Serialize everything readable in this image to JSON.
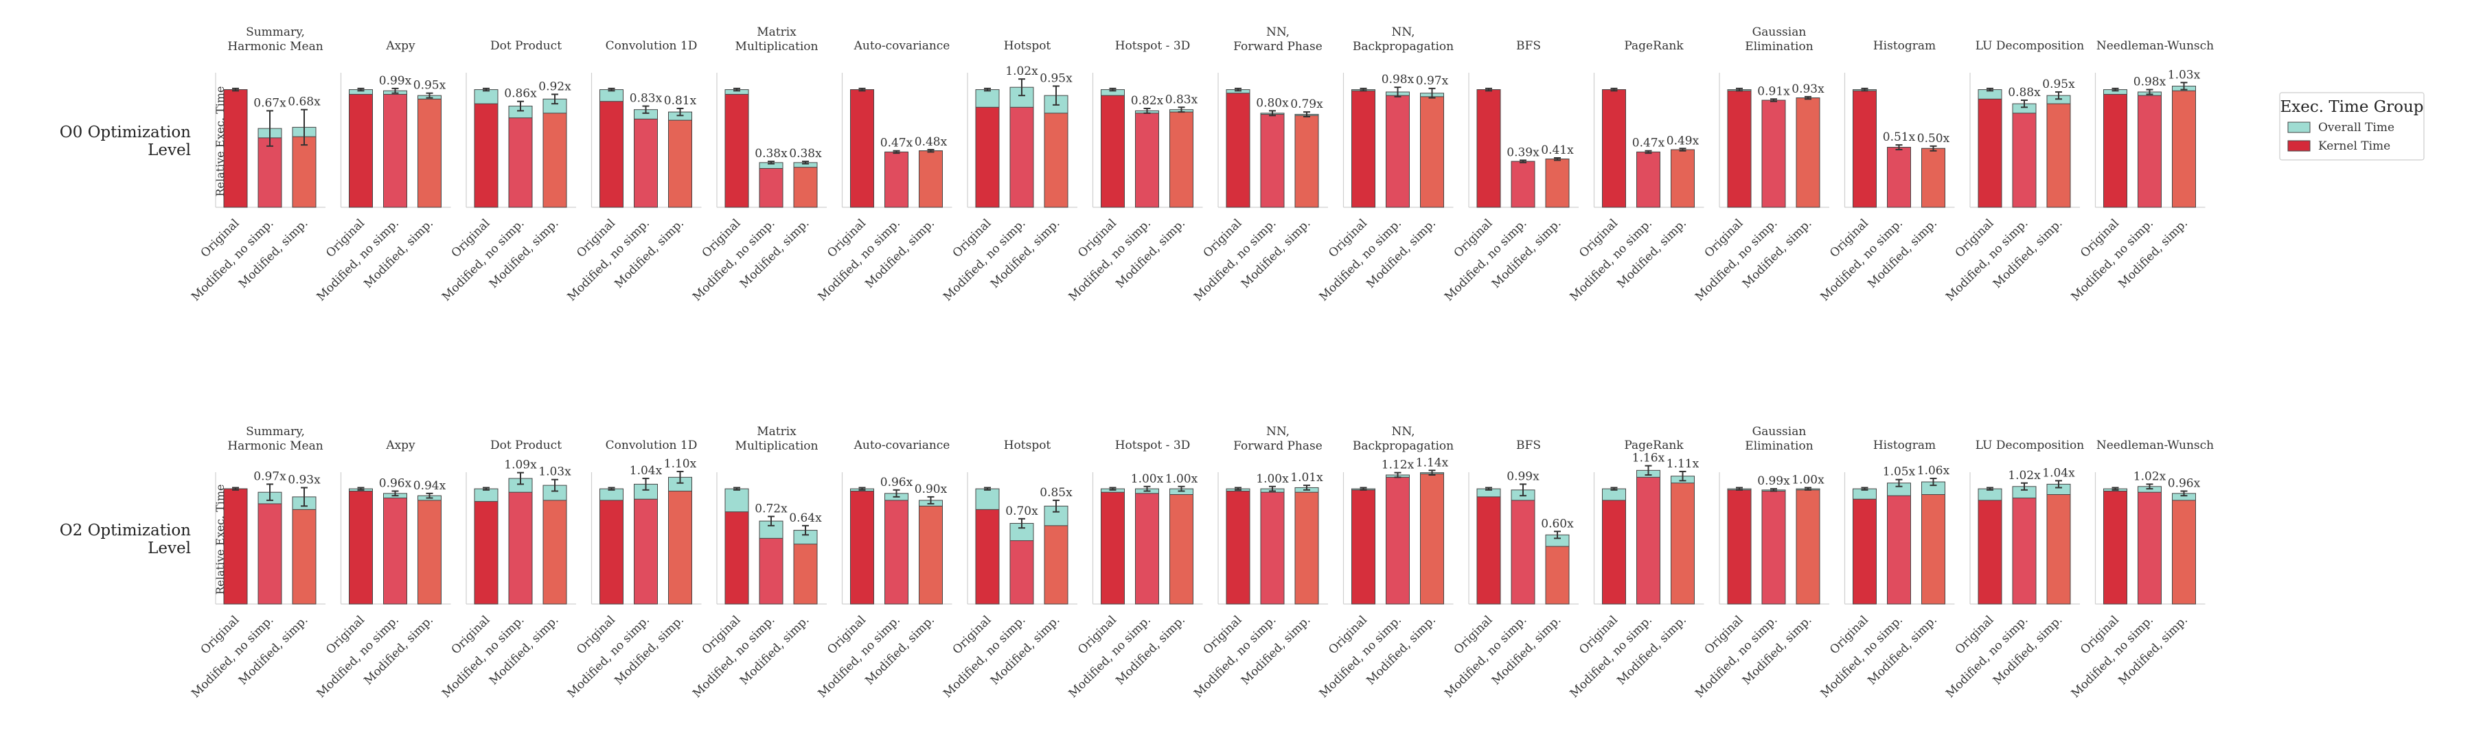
{
  "chart_data": {
    "type": "bar",
    "stacked_overlay": true,
    "ylabel": "Relative Exec. Time",
    "ylim": [
      0,
      1.12
    ],
    "categories": [
      "Original",
      "Modified, no simp.",
      "Modified, simp."
    ],
    "legend": {
      "title": "Exec. Time Group",
      "placement": "right",
      "entries": [
        {
          "name": "Overall Time",
          "color": "#9fdcd2"
        },
        {
          "name": "Kernel Time",
          "color": "#d42a3a"
        }
      ]
    },
    "colors": {
      "overall": "#9fdcd2",
      "kernel_original": "#d62f3c",
      "kernel_no_simp": "#e04c5e",
      "kernel_simp": "#e46456",
      "edge": "#444444"
    },
    "rows": [
      {
        "label_lines": [
          "O0 Optimization",
          "Level"
        ],
        "panels": [
          {
            "title": [
              "Summary,",
              "Harmonic Mean"
            ],
            "kernel": [
              1.0,
              0.59,
              0.6
            ],
            "overall": [
              1.0,
              0.67,
              0.68
            ],
            "labels": [
              "",
              "0.67x",
              "0.68x"
            ],
            "err": [
              0.01,
              0.15,
              0.15
            ]
          },
          {
            "title": [
              "Axpy"
            ],
            "kernel": [
              0.96,
              0.96,
              0.92
            ],
            "overall": [
              1.0,
              0.99,
              0.95
            ],
            "labels": [
              "",
              "0.99x",
              "0.95x"
            ],
            "err": [
              0.01,
              0.02,
              0.02
            ]
          },
          {
            "title": [
              "Dot Product"
            ],
            "kernel": [
              0.88,
              0.76,
              0.8
            ],
            "overall": [
              1.0,
              0.86,
              0.92
            ],
            "labels": [
              "",
              "0.86x",
              "0.92x"
            ],
            "err": [
              0.01,
              0.04,
              0.04
            ]
          },
          {
            "title": [
              "Convolution 1D"
            ],
            "kernel": [
              0.9,
              0.75,
              0.74
            ],
            "overall": [
              1.0,
              0.83,
              0.81
            ],
            "labels": [
              "",
              "0.83x",
              "0.81x"
            ],
            "err": [
              0.01,
              0.03,
              0.03
            ]
          },
          {
            "title": [
              "Matrix",
              "Multiplication"
            ],
            "kernel": [
              0.96,
              0.33,
              0.34
            ],
            "overall": [
              1.0,
              0.38,
              0.38
            ],
            "labels": [
              "",
              "0.38x",
              "0.38x"
            ],
            "err": [
              0.01,
              0.01,
              0.01
            ]
          },
          {
            "title": [
              "Auto-covariance"
            ],
            "kernel": [
              1.0,
              0.47,
              0.48
            ],
            "overall": [
              1.0,
              0.47,
              0.48
            ],
            "labels": [
              "",
              "0.47x",
              "0.48x"
            ],
            "err": [
              0.01,
              0.01,
              0.01
            ]
          },
          {
            "title": [
              "Hotspot"
            ],
            "kernel": [
              0.85,
              0.85,
              0.8
            ],
            "overall": [
              1.0,
              1.02,
              0.95
            ],
            "labels": [
              "",
              "1.02x",
              "0.95x"
            ],
            "err": [
              0.01,
              0.07,
              0.08
            ]
          },
          {
            "title": [
              "Hotspot - 3D"
            ],
            "kernel": [
              0.95,
              0.8,
              0.81
            ],
            "overall": [
              1.0,
              0.82,
              0.83
            ],
            "labels": [
              "",
              "0.82x",
              "0.83x"
            ],
            "err": [
              0.01,
              0.02,
              0.02
            ]
          },
          {
            "title": [
              "NN,",
              "Forward Phase"
            ],
            "kernel": [
              0.97,
              0.79,
              0.78
            ],
            "overall": [
              1.0,
              0.8,
              0.79
            ],
            "labels": [
              "",
              "0.80x",
              "0.79x"
            ],
            "err": [
              0.01,
              0.02,
              0.02
            ]
          },
          {
            "title": [
              "NN,",
              "Backpropagation"
            ],
            "kernel": [
              0.99,
              0.95,
              0.94
            ],
            "overall": [
              1.0,
              0.98,
              0.97
            ],
            "labels": [
              "",
              "0.98x",
              "0.97x"
            ],
            "err": [
              0.01,
              0.04,
              0.04
            ]
          },
          {
            "title": [
              "BFS"
            ],
            "kernel": [
              1.0,
              0.39,
              0.41
            ],
            "overall": [
              1.0,
              0.39,
              0.41
            ],
            "labels": [
              "",
              "0.39x",
              "0.41x"
            ],
            "err": [
              0.01,
              0.01,
              0.01
            ]
          },
          {
            "title": [
              "PageRank"
            ],
            "kernel": [
              1.0,
              0.47,
              0.49
            ],
            "overall": [
              1.0,
              0.47,
              0.49
            ],
            "labels": [
              "",
              "0.47x",
              "0.49x"
            ],
            "err": [
              0.01,
              0.01,
              0.01
            ]
          },
          {
            "title": [
              "Gaussian",
              "Elimination"
            ],
            "kernel": [
              0.99,
              0.91,
              0.93
            ],
            "overall": [
              1.0,
              0.91,
              0.93
            ],
            "labels": [
              "",
              "0.91x",
              "0.93x"
            ],
            "err": [
              0.01,
              0.01,
              0.01
            ]
          },
          {
            "title": [
              "Histogram"
            ],
            "kernel": [
              0.99,
              0.51,
              0.5
            ],
            "overall": [
              1.0,
              0.51,
              0.5
            ],
            "labels": [
              "",
              "0.51x",
              "0.50x"
            ],
            "err": [
              0.01,
              0.02,
              0.02
            ]
          },
          {
            "title": [
              "LU Decomposition"
            ],
            "kernel": [
              0.92,
              0.8,
              0.88
            ],
            "overall": [
              1.0,
              0.88,
              0.95
            ],
            "labels": [
              "",
              "0.88x",
              "0.95x"
            ],
            "err": [
              0.01,
              0.03,
              0.03
            ]
          },
          {
            "title": [
              "Needleman-Wunsch"
            ],
            "kernel": [
              0.96,
              0.95,
              0.99
            ],
            "overall": [
              1.0,
              0.98,
              1.03
            ],
            "labels": [
              "",
              "0.98x",
              "1.03x"
            ],
            "err": [
              0.01,
              0.02,
              0.03
            ]
          }
        ]
      },
      {
        "label_lines": [
          "O2 Optimization",
          "Level"
        ],
        "panels": [
          {
            "title": [
              "Summary,",
              "Harmonic Mean"
            ],
            "kernel": [
              1.0,
              0.87,
              0.82
            ],
            "overall": [
              1.0,
              0.97,
              0.93
            ],
            "labels": [
              "",
              "0.97x",
              "0.93x"
            ],
            "err": [
              0.01,
              0.07,
              0.08
            ]
          },
          {
            "title": [
              "Axpy"
            ],
            "kernel": [
              0.98,
              0.92,
              0.9
            ],
            "overall": [
              1.0,
              0.96,
              0.94
            ],
            "labels": [
              "",
              "0.96x",
              "0.94x"
            ],
            "err": [
              0.01,
              0.02,
              0.02
            ]
          },
          {
            "title": [
              "Dot Product"
            ],
            "kernel": [
              0.89,
              0.97,
              0.9
            ],
            "overall": [
              1.0,
              1.09,
              1.03
            ],
            "labels": [
              "",
              "1.09x",
              "1.03x"
            ],
            "err": [
              0.01,
              0.05,
              0.05
            ]
          },
          {
            "title": [
              "Convolution 1D"
            ],
            "kernel": [
              0.9,
              0.91,
              0.98
            ],
            "overall": [
              1.0,
              1.04,
              1.1
            ],
            "labels": [
              "",
              "1.04x",
              "1.10x"
            ],
            "err": [
              0.01,
              0.05,
              0.05
            ]
          },
          {
            "title": [
              "Matrix",
              "Multiplication"
            ],
            "kernel": [
              0.8,
              0.57,
              0.52
            ],
            "overall": [
              1.0,
              0.72,
              0.64
            ],
            "labels": [
              "",
              "0.72x",
              "0.64x"
            ],
            "err": [
              0.01,
              0.04,
              0.04
            ]
          },
          {
            "title": [
              "Auto-covariance"
            ],
            "kernel": [
              0.98,
              0.9,
              0.85
            ],
            "overall": [
              1.0,
              0.96,
              0.9
            ],
            "labels": [
              "",
              "0.96x",
              "0.90x"
            ],
            "err": [
              0.01,
              0.03,
              0.03
            ]
          },
          {
            "title": [
              "Hotspot"
            ],
            "kernel": [
              0.82,
              0.55,
              0.68
            ],
            "overall": [
              1.0,
              0.7,
              0.85
            ],
            "labels": [
              "",
              "0.70x",
              "0.85x"
            ],
            "err": [
              0.01,
              0.04,
              0.05
            ]
          },
          {
            "title": [
              "Hotspot - 3D"
            ],
            "kernel": [
              0.97,
              0.96,
              0.95
            ],
            "overall": [
              1.0,
              1.0,
              1.0
            ],
            "labels": [
              "",
              "1.00x",
              "1.00x"
            ],
            "err": [
              0.01,
              0.02,
              0.02
            ]
          },
          {
            "title": [
              "NN,",
              "Forward Phase"
            ],
            "kernel": [
              0.98,
              0.97,
              0.97
            ],
            "overall": [
              1.0,
              1.0,
              1.01
            ],
            "labels": [
              "",
              "1.00x",
              "1.01x"
            ],
            "err": [
              0.01,
              0.02,
              0.02
            ]
          },
          {
            "title": [
              "NN,",
              "Backpropagation"
            ],
            "kernel": [
              0.99,
              1.1,
              1.13
            ],
            "overall": [
              1.0,
              1.12,
              1.14
            ],
            "labels": [
              "",
              "1.12x",
              "1.14x"
            ],
            "err": [
              0.01,
              0.02,
              0.02
            ]
          },
          {
            "title": [
              "BFS"
            ],
            "kernel": [
              0.93,
              0.9,
              0.5
            ],
            "overall": [
              1.0,
              0.99,
              0.6
            ],
            "labels": [
              "",
              "0.99x",
              "0.60x"
            ],
            "err": [
              0.01,
              0.05,
              0.03
            ]
          },
          {
            "title": [
              "PageRank"
            ],
            "kernel": [
              0.9,
              1.1,
              1.05
            ],
            "overall": [
              1.0,
              1.16,
              1.11
            ],
            "labels": [
              "",
              "1.16x",
              "1.11x"
            ],
            "err": [
              0.01,
              0.04,
              0.04
            ]
          },
          {
            "title": [
              "Gaussian",
              "Elimination"
            ],
            "kernel": [
              0.99,
              0.98,
              0.99
            ],
            "overall": [
              1.0,
              0.99,
              1.0
            ],
            "labels": [
              "",
              "0.99x",
              "1.00x"
            ],
            "err": [
              0.01,
              0.01,
              0.01
            ]
          },
          {
            "title": [
              "Histogram"
            ],
            "kernel": [
              0.91,
              0.94,
              0.95
            ],
            "overall": [
              1.0,
              1.05,
              1.06
            ],
            "labels": [
              "",
              "1.05x",
              "1.06x"
            ],
            "err": [
              0.01,
              0.03,
              0.03
            ]
          },
          {
            "title": [
              "LU Decomposition"
            ],
            "kernel": [
              0.9,
              0.92,
              0.95
            ],
            "overall": [
              1.0,
              1.02,
              1.04
            ],
            "labels": [
              "",
              "1.02x",
              "1.04x"
            ],
            "err": [
              0.01,
              0.03,
              0.03
            ]
          },
          {
            "title": [
              "Needleman-Wunsch"
            ],
            "kernel": [
              0.98,
              0.97,
              0.9
            ],
            "overall": [
              1.0,
              1.02,
              0.96
            ],
            "labels": [
              "",
              "1.02x",
              "0.96x"
            ],
            "err": [
              0.01,
              0.02,
              0.02
            ]
          }
        ]
      }
    ]
  }
}
